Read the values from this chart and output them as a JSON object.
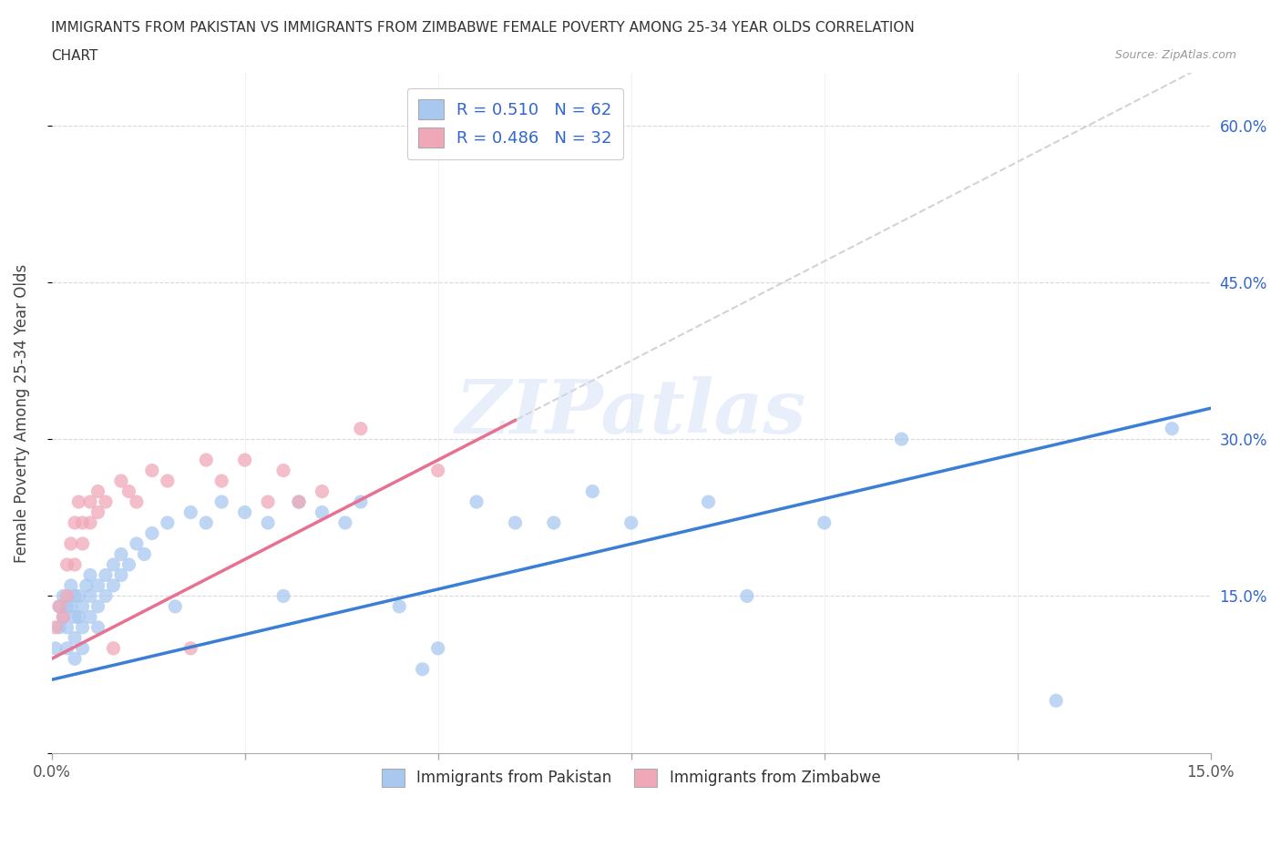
{
  "title_line1": "IMMIGRANTS FROM PAKISTAN VS IMMIGRANTS FROM ZIMBABWE FEMALE POVERTY AMONG 25-34 YEAR OLDS CORRELATION",
  "title_line2": "CHART",
  "source": "Source: ZipAtlas.com",
  "ylabel": "Female Poverty Among 25-34 Year Olds",
  "xlim": [
    0.0,
    0.15
  ],
  "ylim": [
    0.0,
    0.65
  ],
  "ytick_positions": [
    0.0,
    0.15,
    0.3,
    0.45,
    0.6
  ],
  "xtick_positions": [
    0.0,
    0.025,
    0.05,
    0.075,
    0.1,
    0.125,
    0.15
  ],
  "ytick_labels_right": [
    "",
    "15.0%",
    "30.0%",
    "45.0%",
    "60.0%"
  ],
  "pakistan_dot_color": "#a8c8f0",
  "zimbabwe_dot_color": "#f0a8b8",
  "pakistan_line_color": "#3a7fd5",
  "zimbabwe_line_color": "#e87090",
  "zimbabwe_dashed_color": "#c8c8c8",
  "R_pakistan": "0.510",
  "N_pakistan": 62,
  "R_zimbabwe": "0.486",
  "N_zimbabwe": 32,
  "legend_label_color": "#3366cc",
  "background_color": "#ffffff",
  "watermark": "ZIPatlas",
  "grid_color": "#d8d8d8",
  "pakistan_line_intercept": 0.07,
  "pakistan_line_slope": 1.73,
  "zimbabwe_line_intercept": 0.09,
  "zimbabwe_line_slope": 3.8,
  "pakistan_scatter_x": [
    0.0005,
    0.001,
    0.001,
    0.0015,
    0.0015,
    0.002,
    0.002,
    0.002,
    0.0025,
    0.0025,
    0.003,
    0.003,
    0.003,
    0.003,
    0.0035,
    0.0035,
    0.004,
    0.004,
    0.004,
    0.0045,
    0.005,
    0.005,
    0.005,
    0.006,
    0.006,
    0.006,
    0.007,
    0.007,
    0.008,
    0.008,
    0.009,
    0.009,
    0.01,
    0.011,
    0.012,
    0.013,
    0.015,
    0.016,
    0.018,
    0.02,
    0.022,
    0.025,
    0.028,
    0.03,
    0.032,
    0.035,
    0.038,
    0.04,
    0.045,
    0.048,
    0.05,
    0.055,
    0.06,
    0.065,
    0.07,
    0.075,
    0.085,
    0.09,
    0.1,
    0.11,
    0.13,
    0.145
  ],
  "pakistan_scatter_y": [
    0.1,
    0.14,
    0.12,
    0.15,
    0.13,
    0.14,
    0.12,
    0.1,
    0.16,
    0.14,
    0.15,
    0.13,
    0.11,
    0.09,
    0.15,
    0.13,
    0.14,
    0.12,
    0.1,
    0.16,
    0.17,
    0.15,
    0.13,
    0.16,
    0.14,
    0.12,
    0.17,
    0.15,
    0.18,
    0.16,
    0.19,
    0.17,
    0.18,
    0.2,
    0.19,
    0.21,
    0.22,
    0.14,
    0.23,
    0.22,
    0.24,
    0.23,
    0.22,
    0.15,
    0.24,
    0.23,
    0.22,
    0.24,
    0.14,
    0.08,
    0.1,
    0.24,
    0.22,
    0.22,
    0.25,
    0.22,
    0.24,
    0.15,
    0.22,
    0.3,
    0.05,
    0.31
  ],
  "zimbabwe_scatter_x": [
    0.0005,
    0.001,
    0.0015,
    0.002,
    0.002,
    0.0025,
    0.003,
    0.003,
    0.0035,
    0.004,
    0.004,
    0.005,
    0.005,
    0.006,
    0.006,
    0.007,
    0.008,
    0.009,
    0.01,
    0.011,
    0.013,
    0.015,
    0.018,
    0.02,
    0.022,
    0.025,
    0.028,
    0.03,
    0.032,
    0.035,
    0.04,
    0.05
  ],
  "zimbabwe_scatter_y": [
    0.12,
    0.14,
    0.13,
    0.18,
    0.15,
    0.2,
    0.22,
    0.18,
    0.24,
    0.22,
    0.2,
    0.24,
    0.22,
    0.25,
    0.23,
    0.24,
    0.1,
    0.26,
    0.25,
    0.24,
    0.27,
    0.26,
    0.1,
    0.28,
    0.26,
    0.28,
    0.24,
    0.27,
    0.24,
    0.25,
    0.31,
    0.27
  ]
}
